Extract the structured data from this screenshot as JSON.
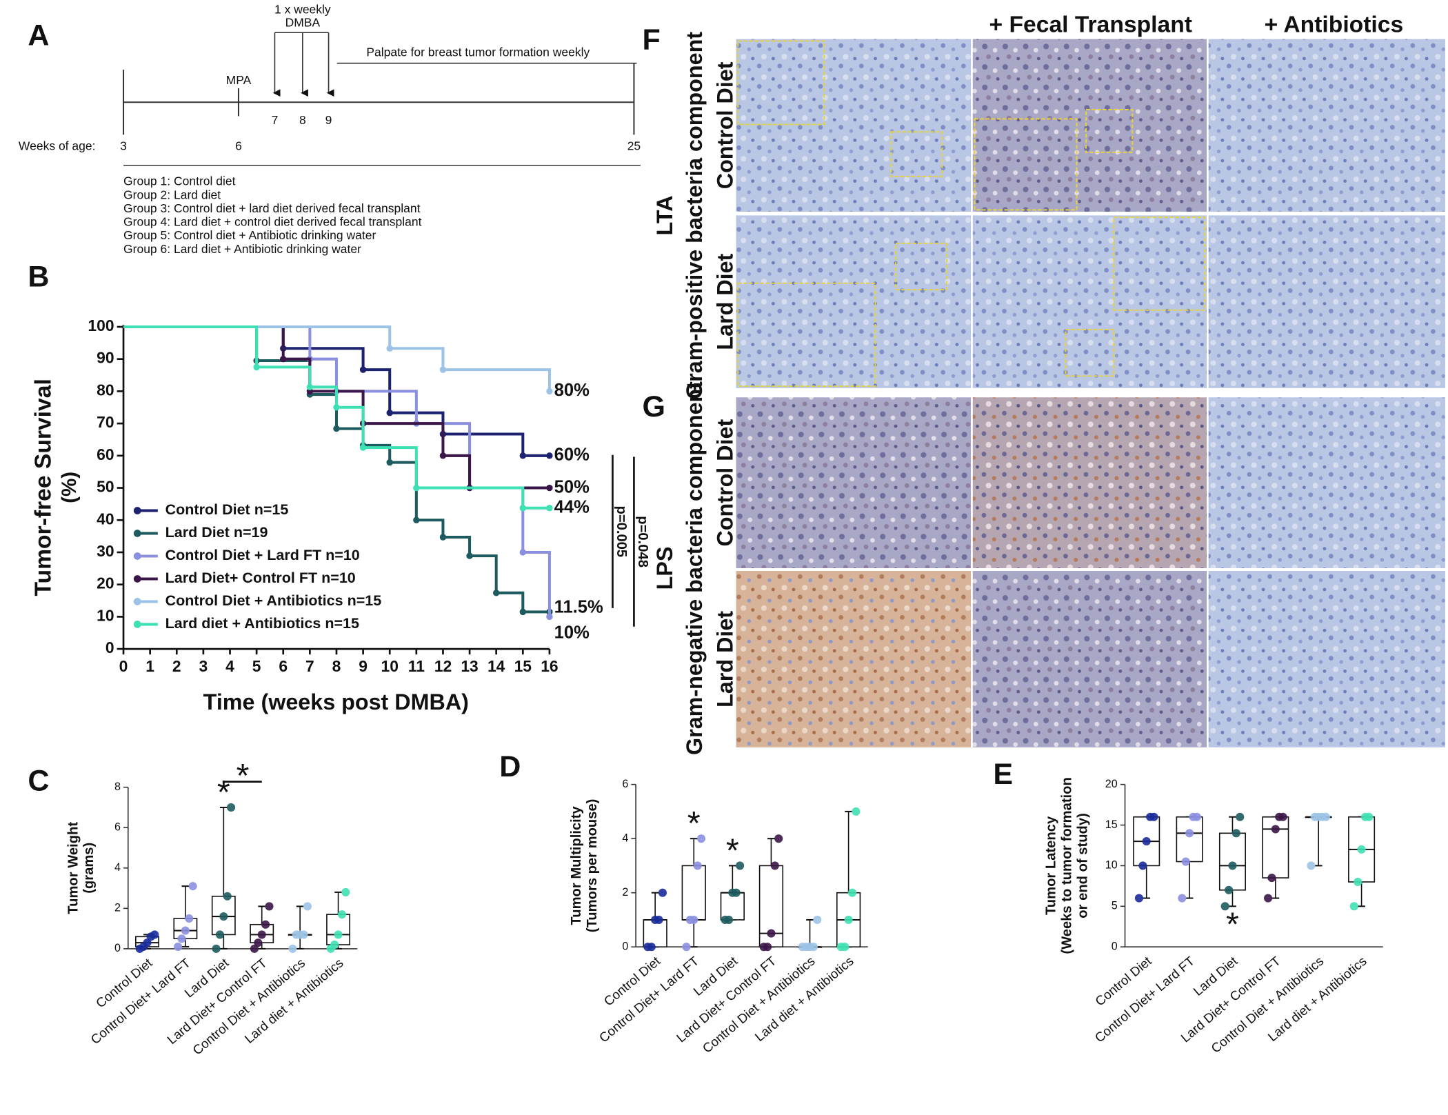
{
  "panel_labels": [
    "A",
    "B",
    "C",
    "D",
    "E",
    "F",
    "G"
  ],
  "timeline": {
    "header": [
      "1 x weekly",
      "DMBA"
    ],
    "mpa": "MPA",
    "palpate": "Palpate for breast tumor formation weekly",
    "axis_label": "Weeks of age:",
    "weeks": [
      "3",
      "6",
      "7",
      "8",
      "9",
      "25"
    ],
    "groups": [
      "Group 1: Control diet",
      "Group 2: Lard diet",
      "Group 3: Control diet + lard diet derived fecal transplant",
      "Group 4: Lard diet + control diet derived fecal transplant",
      "Group 5: Control diet + Antibiotic drinking water",
      "Group 6: Lard diet + Antibiotic drinking water"
    ]
  },
  "chart_data": [
    {
      "type": "survival",
      "ylabel": [
        "Tumor-free Survival",
        "(%)"
      ],
      "xlabel": "Time (weeks post DMBA)",
      "xlim": [
        0,
        16
      ],
      "xticks": [
        0,
        1,
        2,
        3,
        4,
        5,
        6,
        7,
        8,
        9,
        10,
        11,
        12,
        13,
        14,
        15,
        16
      ],
      "ylim": [
        0,
        100
      ],
      "yticks": [
        0,
        10,
        20,
        30,
        40,
        50,
        60,
        70,
        80,
        90,
        100
      ],
      "series": [
        {
          "name": "Control Diet n=15",
          "color": "#1c2170",
          "x": [
            0,
            6,
            9,
            10,
            12,
            15,
            16
          ],
          "values": [
            100,
            93.3,
            86.7,
            73.3,
            66.7,
            60,
            60
          ],
          "end_label": "60%"
        },
        {
          "name": "Lard Diet n=19",
          "color": "#1d5b5e",
          "x": [
            0,
            5,
            7,
            8,
            9,
            10,
            11,
            12,
            13,
            14,
            15,
            16
          ],
          "values": [
            100,
            89.5,
            79,
            68.4,
            63.2,
            57.9,
            40,
            34.7,
            28.9,
            17.4,
            11.5,
            11.5
          ],
          "end_label": "11.5%"
        },
        {
          "name": "Control Diet + Lard FT n=10",
          "color": "#8b8fe0",
          "x": [
            0,
            7,
            8,
            11,
            13,
            15,
            16
          ],
          "values": [
            100,
            90,
            80,
            70,
            50,
            30,
            10
          ],
          "end_label": "10%"
        },
        {
          "name": "Lard Diet+ Control FT n=10",
          "color": "#3b1648",
          "x": [
            0,
            6,
            7,
            9,
            12,
            13,
            16
          ],
          "values": [
            100,
            90,
            80,
            70,
            60,
            50,
            50
          ],
          "end_label": "50%"
        },
        {
          "name": "Control Diet + Antibiotics n=15",
          "color": "#9cc3e6",
          "x": [
            0,
            10,
            12,
            16
          ],
          "values": [
            100,
            93.3,
            86.7,
            80
          ],
          "end_label": "80%"
        },
        {
          "name": "Lard diet + Antibiotics n=15",
          "color": "#3fe0b4",
          "x": [
            0,
            5,
            7,
            8,
            9,
            11,
            15,
            16
          ],
          "values": [
            100,
            87.5,
            81.3,
            75,
            62.5,
            50,
            43.75,
            43.75
          ],
          "end_label": "44%"
        }
      ],
      "annotations": [
        {
          "text": "p=0.005",
          "color": "#444444"
        },
        {
          "text": "p=0.048",
          "color": "#8b8fe0"
        }
      ]
    },
    {
      "type": "box",
      "ylabel": [
        "Tumor Weight",
        "(grams)"
      ],
      "categories": [
        "Control Diet",
        "Control Diet+ Lard FT",
        "Lard Diet",
        "Lard Diet+ Control FT",
        "Control Diet + Antibiotics",
        "Lard diet + Antibiotics"
      ],
      "colors": [
        "#1a2a9a",
        "#8b8fe0",
        "#1d5b5e",
        "#3b1648",
        "#9cc3e6",
        "#3fe0b4"
      ],
      "values": [
        [
          0,
          0.1,
          0.3,
          0.6,
          0.7
        ],
        [
          0.1,
          0.5,
          0.9,
          1.5,
          3.1
        ],
        [
          0,
          0.7,
          1.6,
          2.6,
          7
        ],
        [
          0,
          0.3,
          0.7,
          1.2,
          2.1
        ],
        [
          0,
          0.7,
          0.7,
          0.7,
          2.1
        ],
        [
          0,
          0.2,
          0.7,
          1.7,
          2.8
        ]
      ],
      "ylim": [
        0,
        8
      ],
      "yticks": [
        0,
        2,
        4,
        6,
        8
      ],
      "annotations": [
        {
          "text": "*",
          "category": 2
        },
        {
          "text": "*",
          "categories": [
            2,
            3
          ]
        }
      ]
    },
    {
      "type": "box",
      "ylabel": [
        "Tumor Multiplicity",
        "(Tumors per mouse)"
      ],
      "categories": [
        "Control Diet",
        "Control Diet+ Lard FT",
        "Lard Diet",
        "Lard Diet+ Control FT",
        "Control Diet + Antibiotics",
        "Lard diet + Antibiotics"
      ],
      "colors": [
        "#1a2a9a",
        "#8b8fe0",
        "#1d5b5e",
        "#3b1648",
        "#9cc3e6",
        "#3fe0b4"
      ],
      "values": [
        [
          0,
          0,
          1,
          1,
          2
        ],
        [
          0,
          1,
          1,
          3,
          4
        ],
        [
          1,
          1,
          2,
          2,
          3
        ],
        [
          0,
          0,
          0.5,
          3,
          4
        ],
        [
          0,
          0,
          0,
          0,
          1
        ],
        [
          0,
          0,
          1,
          2,
          5
        ]
      ],
      "ylim": [
        0,
        6
      ],
      "yticks": [
        0,
        2,
        4,
        6
      ],
      "annotations": [
        {
          "text": "*",
          "category": 1
        },
        {
          "text": "*",
          "category": 2
        }
      ]
    },
    {
      "type": "box",
      "ylabel": [
        "Tumor Latency",
        "(Weeks to tumor formation",
        "or end of study)"
      ],
      "categories": [
        "Control Diet",
        "Control Diet+ Lard FT",
        "Lard Diet",
        "Lard Diet+ Control FT",
        "Control Diet + Antibiotics",
        "Lard diet + Antibiotics"
      ],
      "colors": [
        "#1a2a9a",
        "#8b8fe0",
        "#1d5b5e",
        "#3b1648",
        "#9cc3e6",
        "#3fe0b4"
      ],
      "values": [
        [
          6,
          10,
          13,
          16,
          16
        ],
        [
          6,
          10.5,
          14,
          16,
          16
        ],
        [
          5,
          7,
          10,
          14,
          16
        ],
        [
          6,
          8.5,
          14.5,
          16,
          16
        ],
        [
          10,
          16,
          16,
          16,
          16
        ],
        [
          5,
          8,
          12,
          16,
          16
        ]
      ],
      "ylim": [
        0,
        20
      ],
      "yticks": [
        0,
        5,
        10,
        15,
        20
      ],
      "annotations": [
        {
          "text": "*",
          "category": 2
        }
      ]
    }
  ],
  "histology": {
    "columns": [
      "+ Fecal Transplant",
      "+ Antibiotics"
    ],
    "rows": [
      "Control Diet",
      "Lard Diet",
      "Control Diet",
      "Lard Diet"
    ],
    "lta": "LTA",
    "lta_desc": "Gram-positive bacteria component",
    "lps": "LPS",
    "lps_desc": "Gram-negative bacteria component"
  }
}
